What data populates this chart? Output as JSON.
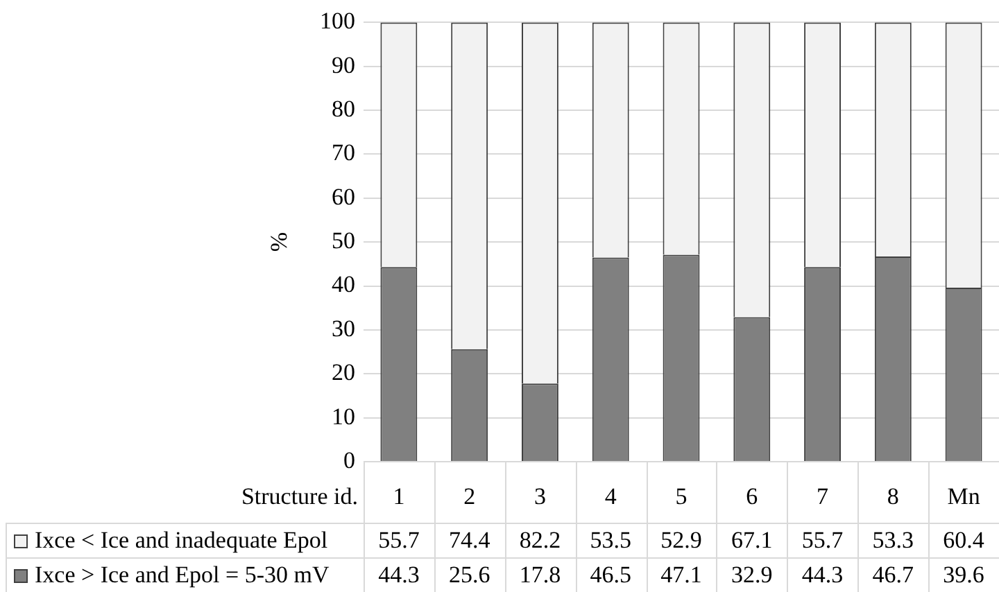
{
  "chart_data": {
    "type": "bar",
    "stacked": true,
    "xlabel": "Structure id.",
    "ylabel": "%",
    "categories": [
      "1",
      "2",
      "3",
      "4",
      "5",
      "6",
      "7",
      "8",
      "Mn"
    ],
    "series": [
      {
        "name": "Ixce > Ice and Epol = 5-30 mV",
        "color": "#808080",
        "values": [
          44.3,
          25.6,
          17.8,
          46.5,
          47.1,
          32.9,
          44.3,
          46.7,
          39.6
        ]
      },
      {
        "name": "Ixce < Ice and inadequate Epol",
        "color": "#f2f2f2",
        "values": [
          55.7,
          74.4,
          82.2,
          53.5,
          52.9,
          67.1,
          55.7,
          53.3,
          60.4
        ]
      }
    ],
    "ylim": [
      0,
      100
    ],
    "yticks": [
      0,
      10,
      20,
      30,
      40,
      50,
      60,
      70,
      80,
      90,
      100
    ],
    "grid": "y",
    "legend": "bottom left",
    "data_labels": true
  }
}
